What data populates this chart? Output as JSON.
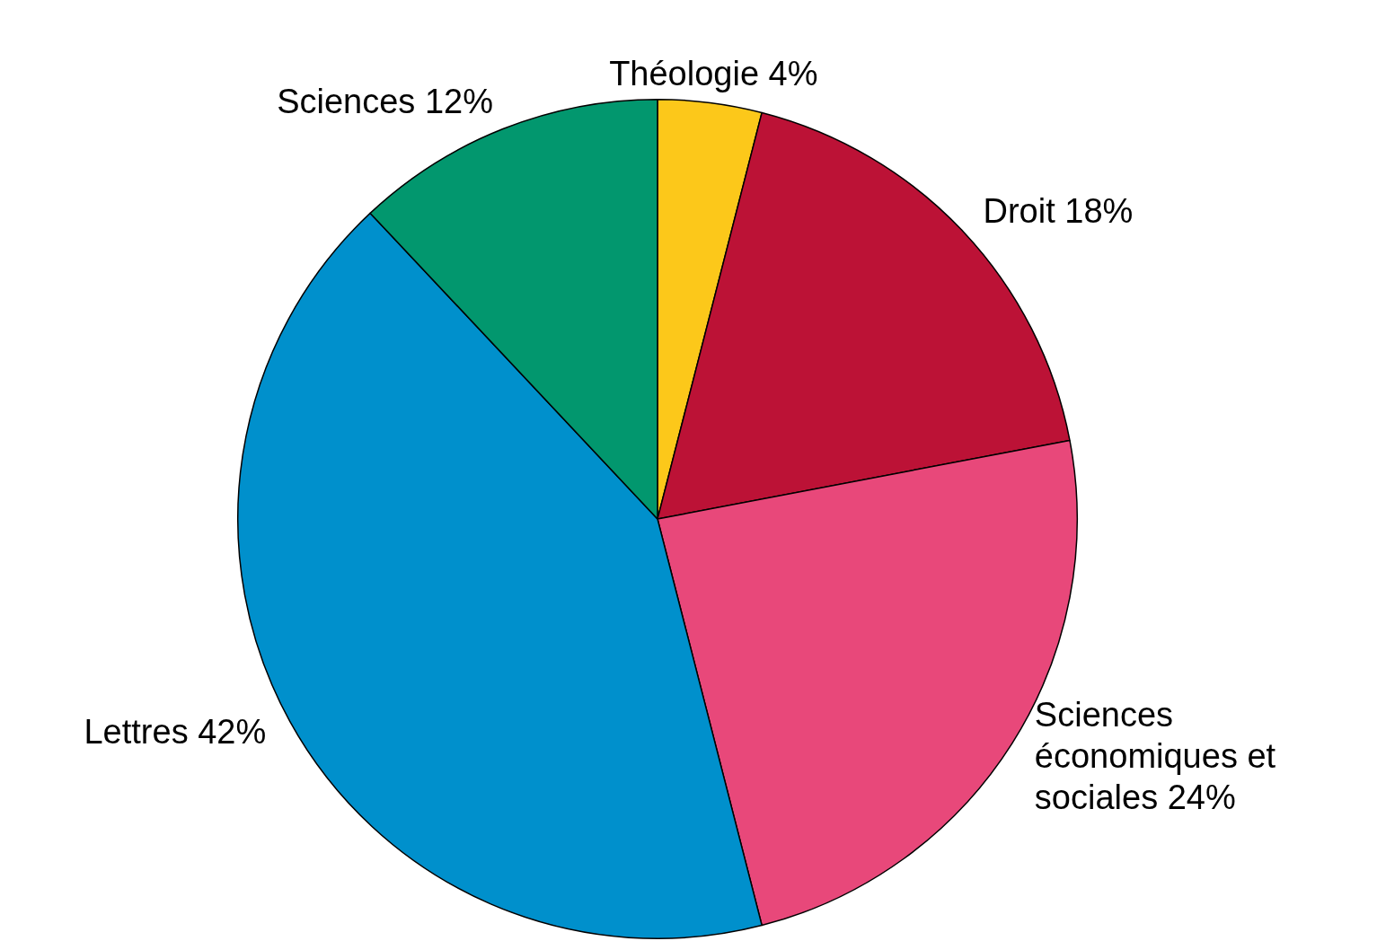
{
  "chart_data": {
    "type": "pie",
    "categories": [
      "Théologie",
      "Droit",
      "Sciences économiques et sociales",
      "Lettres",
      "Sciences"
    ],
    "values": [
      4,
      18,
      24,
      42,
      12
    ],
    "colors": [
      "#fcc81a",
      "#bc1236",
      "#e8487a",
      "#0090cc",
      "#02976e"
    ],
    "value_labels": [
      "4%",
      "18%",
      "24%",
      "42%",
      "12%"
    ],
    "legend": false
  }
}
